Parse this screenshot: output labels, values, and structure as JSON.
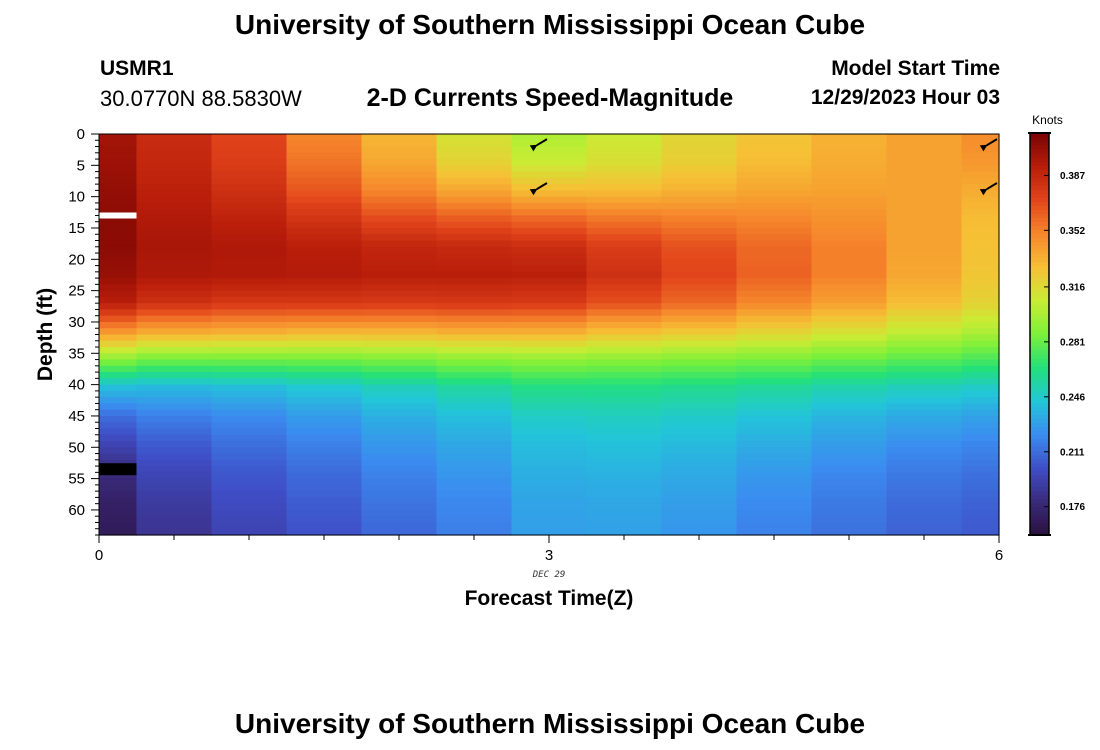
{
  "header": {
    "title": "University of Southern Mississippi Ocean Cube",
    "station": "USMR1",
    "coords": "30.0770N  88.5830W",
    "subtitle": "2-D Currents Speed-Magnitude",
    "start_label": "Model Start Time",
    "start_value": "12/29/2023 Hour 03"
  },
  "footer": {
    "title": "University of Southern Mississippi Ocean Cube"
  },
  "chart_data": {
    "type": "heatmap",
    "title": "2-D Currents Speed-Magnitude",
    "xlabel": "Forecast Time(Z)",
    "ylabel": "Depth (ft)",
    "x_ticks": [
      0,
      3,
      6
    ],
    "x_sublabel": "DEC 29",
    "y_ticks": [
      0,
      5,
      10,
      15,
      20,
      25,
      30,
      35,
      40,
      45,
      50,
      55,
      60
    ],
    "xlim": [
      0,
      6
    ],
    "ylim": [
      0,
      64
    ],
    "y_inverted": true,
    "colorbar": {
      "label": "Knots",
      "ticks": [
        0.176,
        0.211,
        0.246,
        0.281,
        0.316,
        0.352,
        0.387
      ],
      "range": [
        0.158,
        0.414
      ],
      "colors": [
        "#2a1140",
        "#3a2a7a",
        "#3f4ec7",
        "#3b8cf0",
        "#22c6d8",
        "#22e07a",
        "#7cf03a",
        "#c9ec34",
        "#f6c035",
        "#f6872c",
        "#e2451b",
        "#b81d0a",
        "#7a0403"
      ]
    },
    "columns": [
      {
        "time": 0.0,
        "speeds": [
          0.4,
          0.402,
          0.405,
          0.408,
          0.408,
          0.404,
          0.392,
          0.345,
          0.29,
          0.24,
          0.212,
          0.195,
          0.18,
          0.172,
          0.168
        ]
      },
      {
        "time": 0.5,
        "speeds": [
          0.385,
          0.387,
          0.391,
          0.395,
          0.398,
          0.396,
          0.382,
          0.338,
          0.284,
          0.238,
          0.218,
          0.205,
          0.196,
          0.19,
          0.186
        ]
      },
      {
        "time": 1.0,
        "speeds": [
          0.372,
          0.376,
          0.382,
          0.39,
          0.396,
          0.395,
          0.378,
          0.336,
          0.284,
          0.24,
          0.222,
          0.212,
          0.204,
          0.199,
          0.195
        ]
      },
      {
        "time": 1.5,
        "speeds": [
          0.35,
          0.356,
          0.366,
          0.38,
          0.392,
          0.394,
          0.378,
          0.334,
          0.284,
          0.244,
          0.228,
          0.218,
          0.211,
          0.206,
          0.202
        ]
      },
      {
        "time": 2.0,
        "speeds": [
          0.332,
          0.338,
          0.35,
          0.37,
          0.388,
          0.392,
          0.377,
          0.334,
          0.286,
          0.25,
          0.235,
          0.226,
          0.219,
          0.214,
          0.21
        ]
      },
      {
        "time": 2.5,
        "speeds": [
          0.312,
          0.32,
          0.338,
          0.364,
          0.386,
          0.392,
          0.378,
          0.336,
          0.29,
          0.256,
          0.241,
          0.232,
          0.226,
          0.221,
          0.218
        ]
      },
      {
        "time": 3.0,
        "speeds": [
          0.3,
          0.308,
          0.33,
          0.36,
          0.384,
          0.391,
          0.377,
          0.336,
          0.292,
          0.262,
          0.248,
          0.24,
          0.235,
          0.231,
          0.229
        ]
      },
      {
        "time": 3.5,
        "speeds": [
          0.308,
          0.314,
          0.33,
          0.355,
          0.376,
          0.382,
          0.368,
          0.33,
          0.29,
          0.262,
          0.249,
          0.242,
          0.236,
          0.232,
          0.23
        ]
      },
      {
        "time": 4.0,
        "speeds": [
          0.318,
          0.322,
          0.334,
          0.352,
          0.368,
          0.372,
          0.36,
          0.326,
          0.288,
          0.26,
          0.247,
          0.239,
          0.233,
          0.229,
          0.226
        ]
      },
      {
        "time": 4.5,
        "speeds": [
          0.326,
          0.33,
          0.338,
          0.35,
          0.36,
          0.362,
          0.35,
          0.32,
          0.286,
          0.257,
          0.243,
          0.234,
          0.227,
          0.222,
          0.219
        ]
      },
      {
        "time": 5.0,
        "speeds": [
          0.334,
          0.336,
          0.34,
          0.346,
          0.352,
          0.352,
          0.341,
          0.314,
          0.282,
          0.253,
          0.237,
          0.228,
          0.221,
          0.216,
          0.213
        ]
      },
      {
        "time": 5.5,
        "speeds": [
          0.34,
          0.34,
          0.34,
          0.34,
          0.34,
          0.338,
          0.33,
          0.306,
          0.278,
          0.25,
          0.233,
          0.223,
          0.216,
          0.211,
          0.208
        ]
      },
      {
        "time": 6.0,
        "speeds": [
          0.348,
          0.344,
          0.336,
          0.33,
          0.328,
          0.326,
          0.32,
          0.3,
          0.274,
          0.247,
          0.23,
          0.22,
          0.213,
          0.208,
          0.205
        ]
      }
    ],
    "speed_depths": [
      0,
      4.5,
      9,
      13.5,
      18,
      22.5,
      27,
      31.5,
      36,
      40.5,
      45,
      49.5,
      54,
      58.5,
      63
    ],
    "vectors": [
      {
        "time": 3.0,
        "depth": 0.5,
        "dx": -1,
        "dy": 0.6
      },
      {
        "time": 3.0,
        "depth": 7.5,
        "dx": -1,
        "dy": 0.6
      },
      {
        "time": 6.0,
        "depth": 0.5,
        "dx": -1,
        "dy": 0.6
      },
      {
        "time": 6.0,
        "depth": 7.5,
        "dx": -1,
        "dy": 0.6
      }
    ],
    "markers": [
      {
        "depth": 13,
        "color": "#ffffff"
      },
      {
        "depth": 53.5,
        "color": "#000000"
      }
    ]
  }
}
